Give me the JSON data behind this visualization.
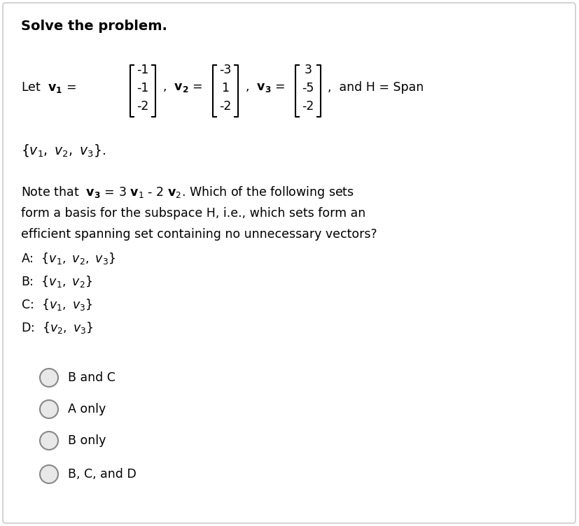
{
  "title": "Solve the problem.",
  "background_color": "#ffffff",
  "border_color": "#cccccc",
  "text_color": "#000000",
  "fig_width": 8.28,
  "fig_height": 7.52,
  "title_fontsize": 13,
  "body_fontsize": 12.5,
  "v1": [
    -1,
    -1,
    -2
  ],
  "v2": [
    -3,
    1,
    -2
  ],
  "v3": [
    3,
    -5,
    -2
  ],
  "radio_options": [
    "B and C",
    "A only",
    "B only",
    "B, C, and D"
  ],
  "radio_fill_color": "#e8e8e8",
  "radio_edge_color": "#888888"
}
